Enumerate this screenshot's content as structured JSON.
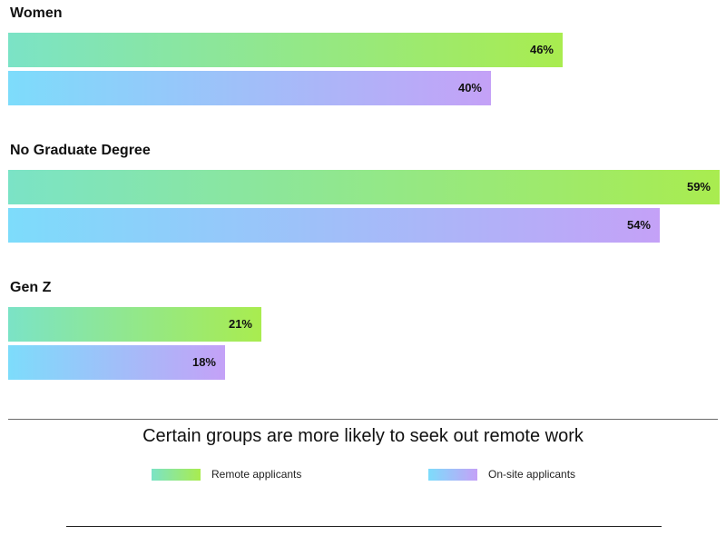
{
  "chart_data": {
    "type": "bar",
    "orientation": "horizontal",
    "title": "Certain groups are more likely to seek out remote work",
    "categories": [
      "Women",
      "No Graduate Degree",
      "Gen Z"
    ],
    "series": [
      {
        "name": "Remote applicants",
        "values": [
          46,
          59,
          21
        ],
        "value_labels": [
          "46%",
          "59%",
          "21%"
        ],
        "gradient": [
          "#7be3c6",
          "#a9ec4f"
        ]
      },
      {
        "name": "On-site applicants",
        "values": [
          40,
          54,
          18
        ],
        "value_labels": [
          "40%",
          "54%",
          "18%"
        ],
        "gradient": [
          "#7ddcfb",
          "#c4a1f7"
        ]
      }
    ],
    "xlim": [
      0,
      59
    ],
    "legend_position": "bottom"
  }
}
